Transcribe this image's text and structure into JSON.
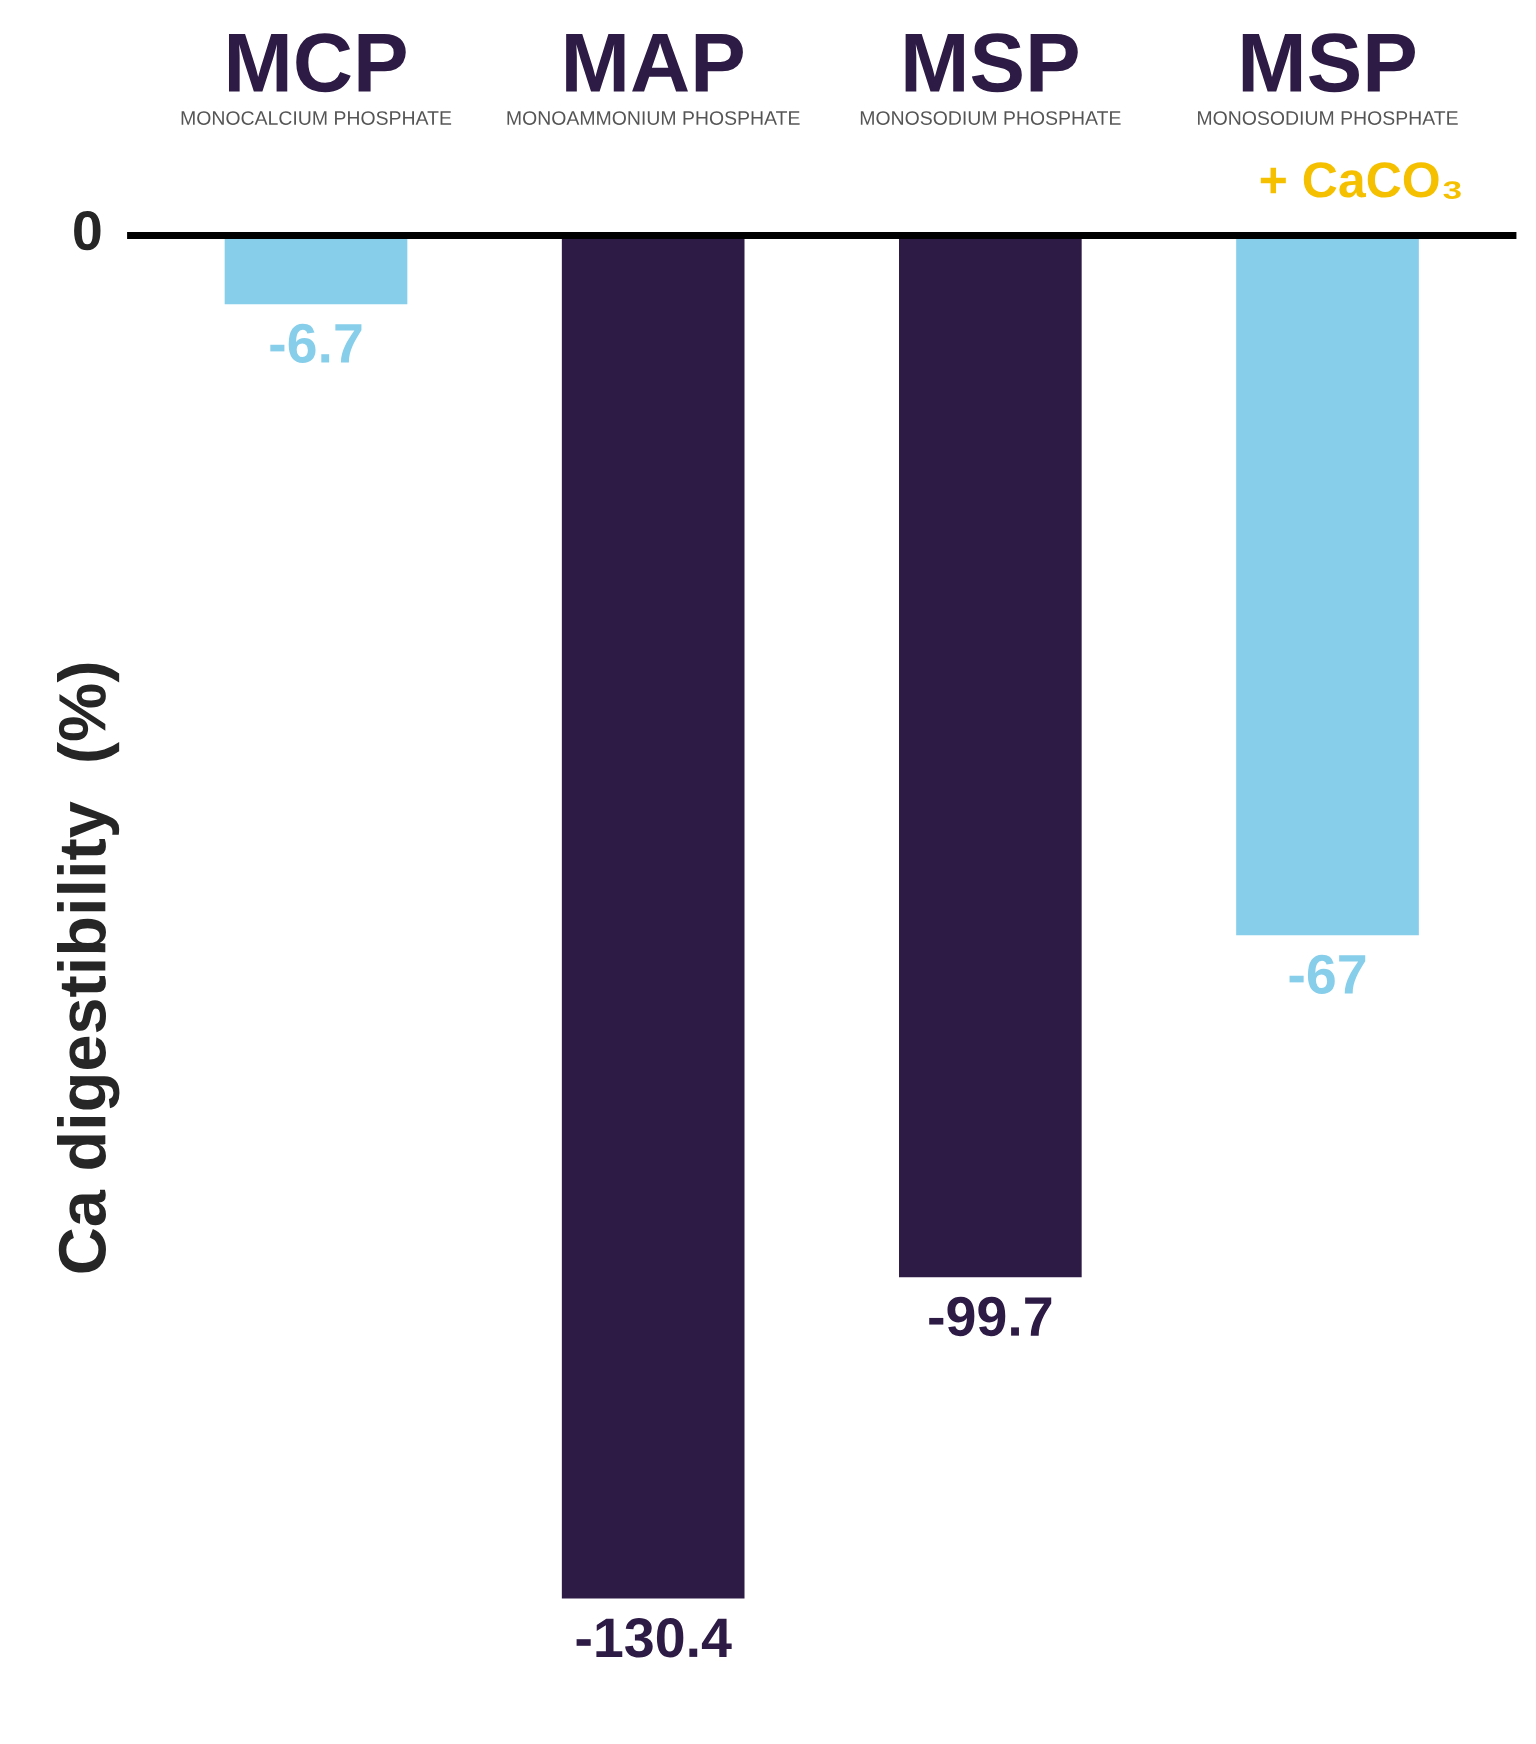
{
  "chart_data": {
    "type": "bar",
    "ylabel": "Ca digestibility  (%)",
    "categories": [
      "MCP\nMONOCALCIUM PHOSPHATE",
      "MAP\nMONOAMMONIUM PHOSPHATE",
      "MSP\nMONOSODIUM PHOSPHATE",
      "MSP\nMONOSODIUM PHOSPHATE\n+ CaCO₃"
    ],
    "values": [
      -6.7,
      -130.4,
      -99.7,
      -67
    ],
    "colors": [
      "#87ceeb",
      "#2d1b45",
      "#2d1b45",
      "#87ceeb"
    ],
    "data_labels": true,
    "annotations": [
      "0"
    ]
  }
}
